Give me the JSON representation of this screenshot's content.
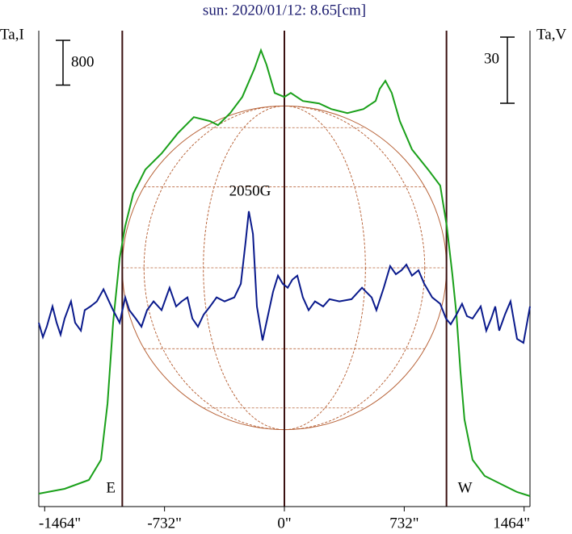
{
  "chart_data": {
    "type": "line",
    "title": "sun: 2020/01/12: 8.65[cm]",
    "ylabel": "Ta,I",
    "y2label": "Ta,V",
    "scale_bar_left": 800,
    "scale_bar_right": 30,
    "limb_radius": 990,
    "annotations": {
      "east": "E",
      "west": "W",
      "field": "2050G"
    },
    "field_position": [
      -210,
      41.1
    ],
    "xlim": [
      -1500,
      1500
    ],
    "xticks": [
      {
        "value": -1464,
        "label": "-1464\""
      },
      {
        "value": -732,
        "label": "-732\""
      },
      {
        "value": 0,
        "label": "0\""
      },
      {
        "value": 732,
        "label": "732\""
      },
      {
        "value": 1464,
        "label": "1464\""
      }
    ],
    "ylim": [
      0,
      8500
    ],
    "y2lim": [
      -90,
      126
    ],
    "series": [
      {
        "name": "I",
        "color": "#1aa01a",
        "x": [
          -1500,
          -1342,
          -1194,
          -1120,
          -1080,
          -1046,
          -1006,
          -972,
          -923,
          -849,
          -750,
          -651,
          -553,
          -454,
          -405,
          -331,
          -257,
          -183,
          -143,
          -109,
          -59,
          0,
          39,
          113,
          212,
          286,
          385,
          483,
          557,
          582,
          617,
          656,
          705,
          779,
          878,
          952,
          992,
          1026,
          1051,
          1075,
          1100,
          1149,
          1223,
          1322,
          1421,
          1500
        ],
        "values": [
          115,
          202,
          360,
          720,
          1728,
          3168,
          4320,
          4896,
          5472,
          5904,
          6192,
          6552,
          6840,
          6768,
          6696,
          6912,
          7200,
          7704,
          8035,
          7776,
          7272,
          7200,
          7272,
          7128,
          7085,
          6984,
          6912,
          6984,
          7128,
          7344,
          7488,
          7272,
          6768,
          6264,
          5904,
          5616,
          4896,
          4032,
          3312,
          2304,
          1440,
          720,
          432,
          288,
          144,
          72
        ]
      },
      {
        "name": "V",
        "color": "#0a1a8c",
        "axis": "y2",
        "x": [
          -1500,
          -1475,
          -1451,
          -1416,
          -1391,
          -1367,
          -1342,
          -1303,
          -1278,
          -1243,
          -1219,
          -1184,
          -1145,
          -1105,
          -1071,
          -1046,
          -1006,
          -972,
          -947,
          -908,
          -873,
          -839,
          -799,
          -750,
          -701,
          -661,
          -627,
          -592,
          -562,
          -528,
          -493,
          -454,
          -414,
          -365,
          -306,
          -266,
          -237,
          -217,
          -192,
          -168,
          -133,
          -99,
          -69,
          -39,
          -10,
          20,
          49,
          79,
          113,
          148,
          187,
          237,
          276,
          336,
          410,
          474,
          533,
          562,
          607,
          646,
          681,
          715,
          745,
          779,
          819,
          854,
          903,
          952,
          987,
          1016,
          1051,
          1085,
          1115,
          1149,
          1199,
          1233,
          1263,
          1288,
          1312,
          1347,
          1381,
          1421,
          1460,
          1500
        ],
        "values": [
          -9.5,
          -16.0,
          -11.3,
          -2.1,
          -9.5,
          -14.9,
          -7.6,
          0.2,
          -9.5,
          -13.1,
          -3.8,
          -2.1,
          0.2,
          5.7,
          0.2,
          -3.8,
          -9.5,
          2.0,
          -3.8,
          -7.6,
          -11.3,
          -3.8,
          0.2,
          -3.8,
          6.4,
          -2.1,
          0.2,
          2.0,
          -7.6,
          -11.3,
          -5.8,
          -2.1,
          2.0,
          0.2,
          2.0,
          8.2,
          27.2,
          41.1,
          30.8,
          -2.1,
          -17.5,
          -5.8,
          4.6,
          11.9,
          8.2,
          6.4,
          10.1,
          11.9,
          2.0,
          -3.8,
          0.2,
          -2.1,
          1.2,
          0.2,
          1.2,
          6.4,
          2.0,
          -3.8,
          6.4,
          16.2,
          12.5,
          14.3,
          16.9,
          11.9,
          14.3,
          8.2,
          2.0,
          -0.9,
          -7.6,
          -10.2,
          -5.8,
          -0.9,
          -6.5,
          -7.6,
          -2.1,
          -13.1,
          -7.6,
          -2.1,
          -13.1,
          -5.8,
          0.2,
          -16.8,
          -18.6,
          -2.1
        ]
      }
    ]
  }
}
